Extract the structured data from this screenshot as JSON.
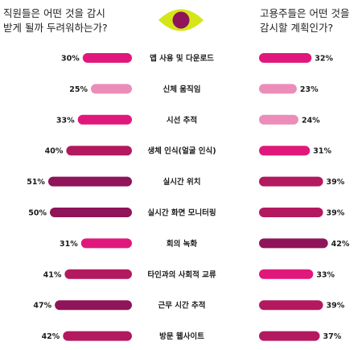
{
  "headings": {
    "left_lines": [
      "직원들은 어떤 것을 감시",
      "받게 될까 두려워하는가?"
    ],
    "right_lines": [
      "고용주들은 어떤 것을",
      "감시할 계획인가?"
    ]
  },
  "icon": "eye-icon",
  "colors": {
    "pink": "#e0187b",
    "light_pink": "#ec8cb8",
    "magenta": "#b3195f",
    "plum": "#8f1459",
    "eye_yellow": "#d4e617"
  },
  "chart_data": [
    {
      "type": "bar",
      "side": "left",
      "categories": [
        "앱 사용 및 다운로드",
        "신체 움직임",
        "시선 추적",
        "생체 인식(얼굴 인식)",
        "실시간 위치",
        "실시간 화면 모니터링",
        "회의 녹화",
        "타인과의 사회적 교류",
        "근무 시간 추적",
        "방문 웹사이트"
      ],
      "values": [
        30,
        25,
        33,
        40,
        51,
        50,
        31,
        41,
        47,
        42
      ],
      "value_labels": [
        "30%",
        "25%",
        "33%",
        "40%",
        "51%",
        "50%",
        "31%",
        "41%",
        "47%",
        "42%"
      ],
      "bar_colors": [
        "#e0187b",
        "#ec8cb8",
        "#e0187b",
        "#b3195f",
        "#8f1459",
        "#8f1459",
        "#e0187b",
        "#b3195f",
        "#8f1459",
        "#b3195f"
      ]
    },
    {
      "type": "bar",
      "side": "right",
      "categories": [
        "앱 사용 및 다운로드",
        "신체 움직임",
        "시선 추적",
        "생체 인식(얼굴 인식)",
        "실시간 위치",
        "실시간 화면 모니터링",
        "회의 녹화",
        "타인과의 사회적 교류",
        "근무 시간 추적",
        "방문 웹사이트"
      ],
      "values": [
        32,
        23,
        24,
        31,
        39,
        39,
        42,
        33,
        39,
        37
      ],
      "value_labels": [
        "32%",
        "23%",
        "24%",
        "31%",
        "39%",
        "39%",
        "42%",
        "33%",
        "39%",
        "37%"
      ],
      "bar_colors": [
        "#e0187b",
        "#ec8cb8",
        "#ec8cb8",
        "#e0187b",
        "#b3195f",
        "#b3195f",
        "#8f1459",
        "#e0187b",
        "#b3195f",
        "#b3195f"
      ]
    }
  ]
}
